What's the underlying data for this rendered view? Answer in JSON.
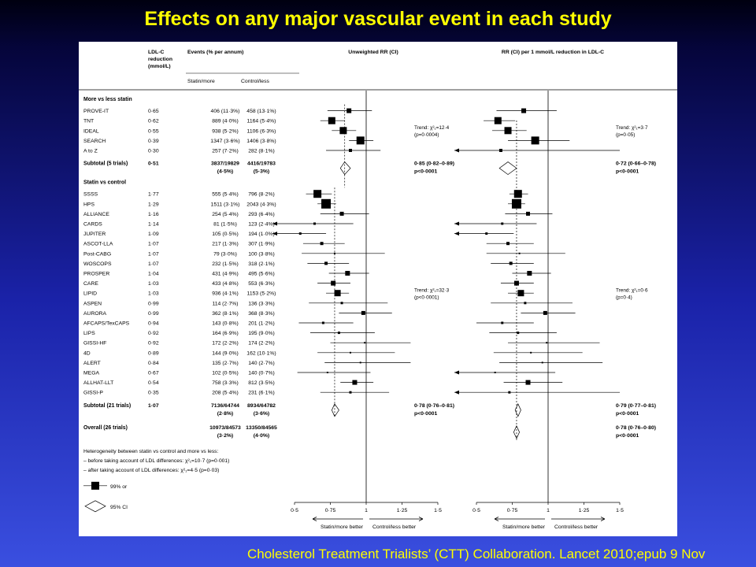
{
  "slide": {
    "title": "Effects on any major vascular event in each study",
    "citation": "Cholesterol Treatment Trialists’ (CTT) Collaboration. Lancet 2010;epub 9 Nov"
  },
  "colors": {
    "title": "#ffff00",
    "background_top": "#000010",
    "background_bottom": "#3a4fe0",
    "panel": "#ffffff",
    "ink": "#000000"
  },
  "headers": {
    "ldl_line1": "LDL-C",
    "ldl_line2": "reduction",
    "ldl_line3": "(mmol/L)",
    "events": "Events (% per annum)",
    "statin_more": "Statin/more",
    "control_less": "Control/less",
    "unweighted": "Unweighted RR (CI)",
    "per_mmol": "RR (CI) per 1 mmol/L reduction in LDL-C"
  },
  "groups": [
    {
      "label": "More vs less statin",
      "trials": [
        {
          "name": "PROVE-IT",
          "ldl": "0·65",
          "statin": "406 (11·3%)",
          "control": "458 (13·1%)",
          "rr": 0.88,
          "lo": 0.73,
          "hi": 1.04,
          "rr2": 0.83,
          "lo2": 0.64,
          "hi2": 1.06,
          "size": 6
        },
        {
          "name": "TNT",
          "ldl": "0·62",
          "statin": "889 (4·0%)",
          "control": "1164 (5·4%)",
          "rr": 0.76,
          "lo": 0.68,
          "hi": 0.85,
          "rr2": 0.65,
          "lo2": 0.55,
          "hi2": 0.77,
          "size": 9
        },
        {
          "name": "IDEAL",
          "ldl": "0·55",
          "statin": "938 (5·2%)",
          "control": "1106 (6·3%)",
          "rr": 0.84,
          "lo": 0.76,
          "hi": 0.93,
          "rr2": 0.72,
          "lo2": 0.61,
          "hi2": 0.85,
          "size": 9
        },
        {
          "name": "SEARCH",
          "ldl": "0·39",
          "statin": "1347 (3·6%)",
          "control": "1406 (3·8%)",
          "rr": 0.96,
          "lo": 0.88,
          "hi": 1.05,
          "rr2": 0.91,
          "lo2": 0.72,
          "hi2": 1.15,
          "size": 10
        },
        {
          "name": "A to Z",
          "ldl": "0·30",
          "statin": "257 (7·2%)",
          "control": "282 (8·1%)",
          "rr": 0.89,
          "lo": 0.72,
          "hi": 1.1,
          "rr2": 0.67,
          "lo2": 0.5,
          "hi2": 1.5,
          "size": 4,
          "arrow_lo2": true
        }
      ],
      "trend": [
        "Trend: χ²₁=12·4",
        "(p=0·0004)"
      ],
      "trend2": [
        "Trend: χ²₁=3·7",
        "(p=0·05)"
      ],
      "subtotal": {
        "label": "Subtotal (5 trials)",
        "ldl": "0·51",
        "statin": "3837/19829",
        "statin_pct": "(4·5%)",
        "control": "4416/19783",
        "control_pct": "(5·3%)",
        "rr": 0.85,
        "lo": 0.82,
        "hi": 0.89,
        "ci": "0·85 (0·82–0·89)",
        "p": "p<0·0001",
        "rr2": 0.72,
        "lo2": 0.66,
        "hi2": 0.78,
        "ci2": "0·72 (0·66–0·78)",
        "p2": "p<0·0001"
      }
    },
    {
      "label": "Statin vs control",
      "trials": [
        {
          "name": "SSSS",
          "ldl": "1·77",
          "statin": "555 (5·4%)",
          "control": "796 (8·2%)",
          "rr": 0.66,
          "lo": 0.58,
          "hi": 0.76,
          "rr2": 0.79,
          "lo2": 0.73,
          "hi2": 0.86,
          "size": 10
        },
        {
          "name": "HPS",
          "ldl": "1·29",
          "statin": "1511 (3·1%)",
          "control": "2043 (4·3%)",
          "rr": 0.72,
          "lo": 0.66,
          "hi": 0.79,
          "rr2": 0.78,
          "lo2": 0.72,
          "hi2": 0.84,
          "size": 12
        },
        {
          "name": "ALLIANCE",
          "ldl": "1·16",
          "statin": "254 (5·4%)",
          "control": "293 (6·4%)",
          "rr": 0.83,
          "lo": 0.68,
          "hi": 1.02,
          "rr2": 0.86,
          "lo2": 0.7,
          "hi2": 1.03,
          "size": 5
        },
        {
          "name": "CARDS",
          "ldl": "1·14",
          "statin": "81 (1·5%)",
          "control": "123 (2·4%)",
          "rr": 0.64,
          "lo": 0.5,
          "hi": 0.91,
          "rr2": 0.68,
          "lo2": 0.5,
          "hi2": 0.92,
          "size": 3,
          "arrow_lo": true,
          "arrow_lo2": true
        },
        {
          "name": "JUPITER",
          "ldl": "1·09",
          "statin": "105 (0·5%)",
          "control": "194 (1·0%)",
          "rr": 0.54,
          "lo": 0.5,
          "hi": 0.72,
          "rr2": 0.57,
          "lo2": 0.5,
          "hi2": 0.76,
          "size": 3,
          "arrow_lo": true,
          "arrow_lo2": true
        },
        {
          "name": "ASCOT-LLA",
          "ldl": "1·07",
          "statin": "217 (1·3%)",
          "control": "307 (1·9%)",
          "rr": 0.69,
          "lo": 0.56,
          "hi": 0.85,
          "rr2": 0.72,
          "lo2": 0.57,
          "hi2": 0.9,
          "size": 4
        },
        {
          "name": "Post-CABG",
          "ldl": "1·07",
          "statin": "79 (3·0%)",
          "control": "100 (3·8%)",
          "rr": 0.78,
          "lo": 0.55,
          "hi": 1.13,
          "rr2": 0.8,
          "lo2": 0.57,
          "hi2": 1.12,
          "size": 2
        },
        {
          "name": "WOSCOPS",
          "ldl": "1·07",
          "statin": "232 (1·5%)",
          "control": "318 (2·1%)",
          "rr": 0.72,
          "lo": 0.59,
          "hi": 0.88,
          "rr2": 0.74,
          "lo2": 0.6,
          "hi2": 0.9,
          "size": 4
        },
        {
          "name": "PROSPER",
          "ldl": "1·04",
          "statin": "431 (4·9%)",
          "control": "495 (5·6%)",
          "rr": 0.87,
          "lo": 0.74,
          "hi": 1.02,
          "rr2": 0.87,
          "lo2": 0.75,
          "hi2": 1.02,
          "size": 6
        },
        {
          "name": "CARE",
          "ldl": "1·03",
          "statin": "433 (4·8%)",
          "control": "553 (6·3%)",
          "rr": 0.77,
          "lo": 0.66,
          "hi": 0.89,
          "rr2": 0.78,
          "lo2": 0.67,
          "hi2": 0.9,
          "size": 6
        },
        {
          "name": "LIPID",
          "ldl": "1·03",
          "statin": "936 (4·1%)",
          "control": "1153 (5·2%)",
          "rr": 0.8,
          "lo": 0.72,
          "hi": 0.88,
          "rr2": 0.81,
          "lo2": 0.72,
          "hi2": 0.9,
          "size": 8
        },
        {
          "name": "ASPEN",
          "ldl": "0·99",
          "statin": "114 (2·7%)",
          "control": "136 (3·3%)",
          "rr": 0.83,
          "lo": 0.6,
          "hi": 1.15,
          "rr2": 0.84,
          "lo2": 0.6,
          "hi2": 1.17,
          "size": 3
        },
        {
          "name": "AURORA",
          "ldl": "0·99",
          "statin": "362 (8·1%)",
          "control": "368 (8·3%)",
          "rr": 0.98,
          "lo": 0.81,
          "hi": 1.18,
          "rr2": 0.98,
          "lo2": 0.81,
          "hi2": 1.19,
          "size": 5
        },
        {
          "name": "AFCAPS/TexCAPS",
          "ldl": "0·94",
          "statin": "143 (0·8%)",
          "control": "201 (1·2%)",
          "rr": 0.7,
          "lo": 0.53,
          "hi": 0.91,
          "rr2": 0.68,
          "lo2": 0.5,
          "hi2": 0.9,
          "size": 3
        },
        {
          "name": "LIPS",
          "ldl": "0·92",
          "statin": "164 (6·9%)",
          "control": "195 (9·0%)",
          "rr": 0.81,
          "lo": 0.61,
          "hi": 1.06,
          "rr2": 0.79,
          "lo2": 0.59,
          "hi2": 1.06,
          "size": 3
        },
        {
          "name": "GISSI-HF",
          "ldl": "0·92",
          "statin": "172 (2·2%)",
          "control": "174 (2·2%)",
          "rr": 0.99,
          "lo": 0.75,
          "hi": 1.31,
          "rr2": 0.99,
          "lo2": 0.72,
          "hi2": 1.36,
          "size": 2
        },
        {
          "name": "4D",
          "ldl": "0·89",
          "statin": "144 (9·0%)",
          "control": "162 (10·1%)",
          "rr": 0.89,
          "lo": 0.66,
          "hi": 1.2,
          "rr2": 0.88,
          "lo2": 0.62,
          "hi2": 1.24,
          "size": 2
        },
        {
          "name": "ALERT",
          "ldl": "0·84",
          "statin": "135 (2·7%)",
          "control": "140 (2·7%)",
          "rr": 0.96,
          "lo": 0.71,
          "hi": 1.31,
          "rr2": 0.96,
          "lo2": 0.66,
          "hi2": 1.38,
          "size": 2
        },
        {
          "name": "MEGA",
          "ldl": "0·67",
          "statin": "102 (0·5%)",
          "control": "140 (0·7%)",
          "rr": 0.73,
          "lo": 0.52,
          "hi": 1.03,
          "rr2": 0.63,
          "lo2": 0.5,
          "hi2": 1.05,
          "size": 2,
          "arrow_lo2": true
        },
        {
          "name": "ALLHAT-LLT",
          "ldl": "0·54",
          "statin": "758 (3·3%)",
          "control": "812 (3·5%)",
          "rr": 0.92,
          "lo": 0.82,
          "hi": 1.05,
          "rr2": 0.86,
          "lo2": 0.69,
          "hi2": 1.1,
          "size": 6
        },
        {
          "name": "GISSI-P",
          "ldl": "0·35",
          "statin": "208 (5·4%)",
          "control": "231 (6·1%)",
          "rr": 0.89,
          "lo": 0.68,
          "hi": 1.16,
          "rr2": 0.73,
          "lo2": 0.5,
          "hi2": 1.5,
          "size": 3,
          "arrow_lo2": true
        }
      ],
      "trend": [
        "Trend: χ²₁=32·3",
        "(p<0·0001)"
      ],
      "trend2": [
        "Trend: χ²₁=0·6",
        "(p=0·4)"
      ],
      "subtotal": {
        "label": "Subtotal (21 trials)",
        "ldl": "1·07",
        "statin": "7136/64744",
        "statin_pct": "(2·8%)",
        "control": "8934/64782",
        "control_pct": "(3·6%)",
        "rr": 0.78,
        "lo": 0.76,
        "hi": 0.81,
        "ci": "0·78 (0·76–0·81)",
        "p": "p<0·0001",
        "rr2": 0.79,
        "lo2": 0.77,
        "hi2": 0.81,
        "ci2": "0·79 (0·77–0·81)",
        "p2": "p<0·0001"
      }
    }
  ],
  "overall": {
    "label": "Overall (26 trials)",
    "statin": "10973/84573",
    "statin_pct": "(3·2%)",
    "control": "13350/84565",
    "control_pct": "(4·0%)",
    "rr2": 0.78,
    "lo2": 0.76,
    "hi2": 0.8,
    "ci2": "0·78 (0·76–0·80)",
    "p2": "p<0·0001"
  },
  "heterogeneity": {
    "line1": "Heterogeneity between statin vs control and more vs less:",
    "line2": "– before taking account of LDL differences: χ²₁=10·7 (p=0·001)",
    "line3": "– after taking account of LDL differences: χ²₁=4·5 (p=0·03)"
  },
  "legend": {
    "square": "99% or",
    "diamond": "95% CI"
  },
  "axis": {
    "ticks": [
      0.5,
      0.75,
      1,
      1.25,
      1.5
    ],
    "tick_labels": [
      "0·5",
      "0·75",
      "1",
      "1·25",
      "1·5"
    ],
    "favours_left": "Statin/more better",
    "favours_right": "Control/less better"
  }
}
